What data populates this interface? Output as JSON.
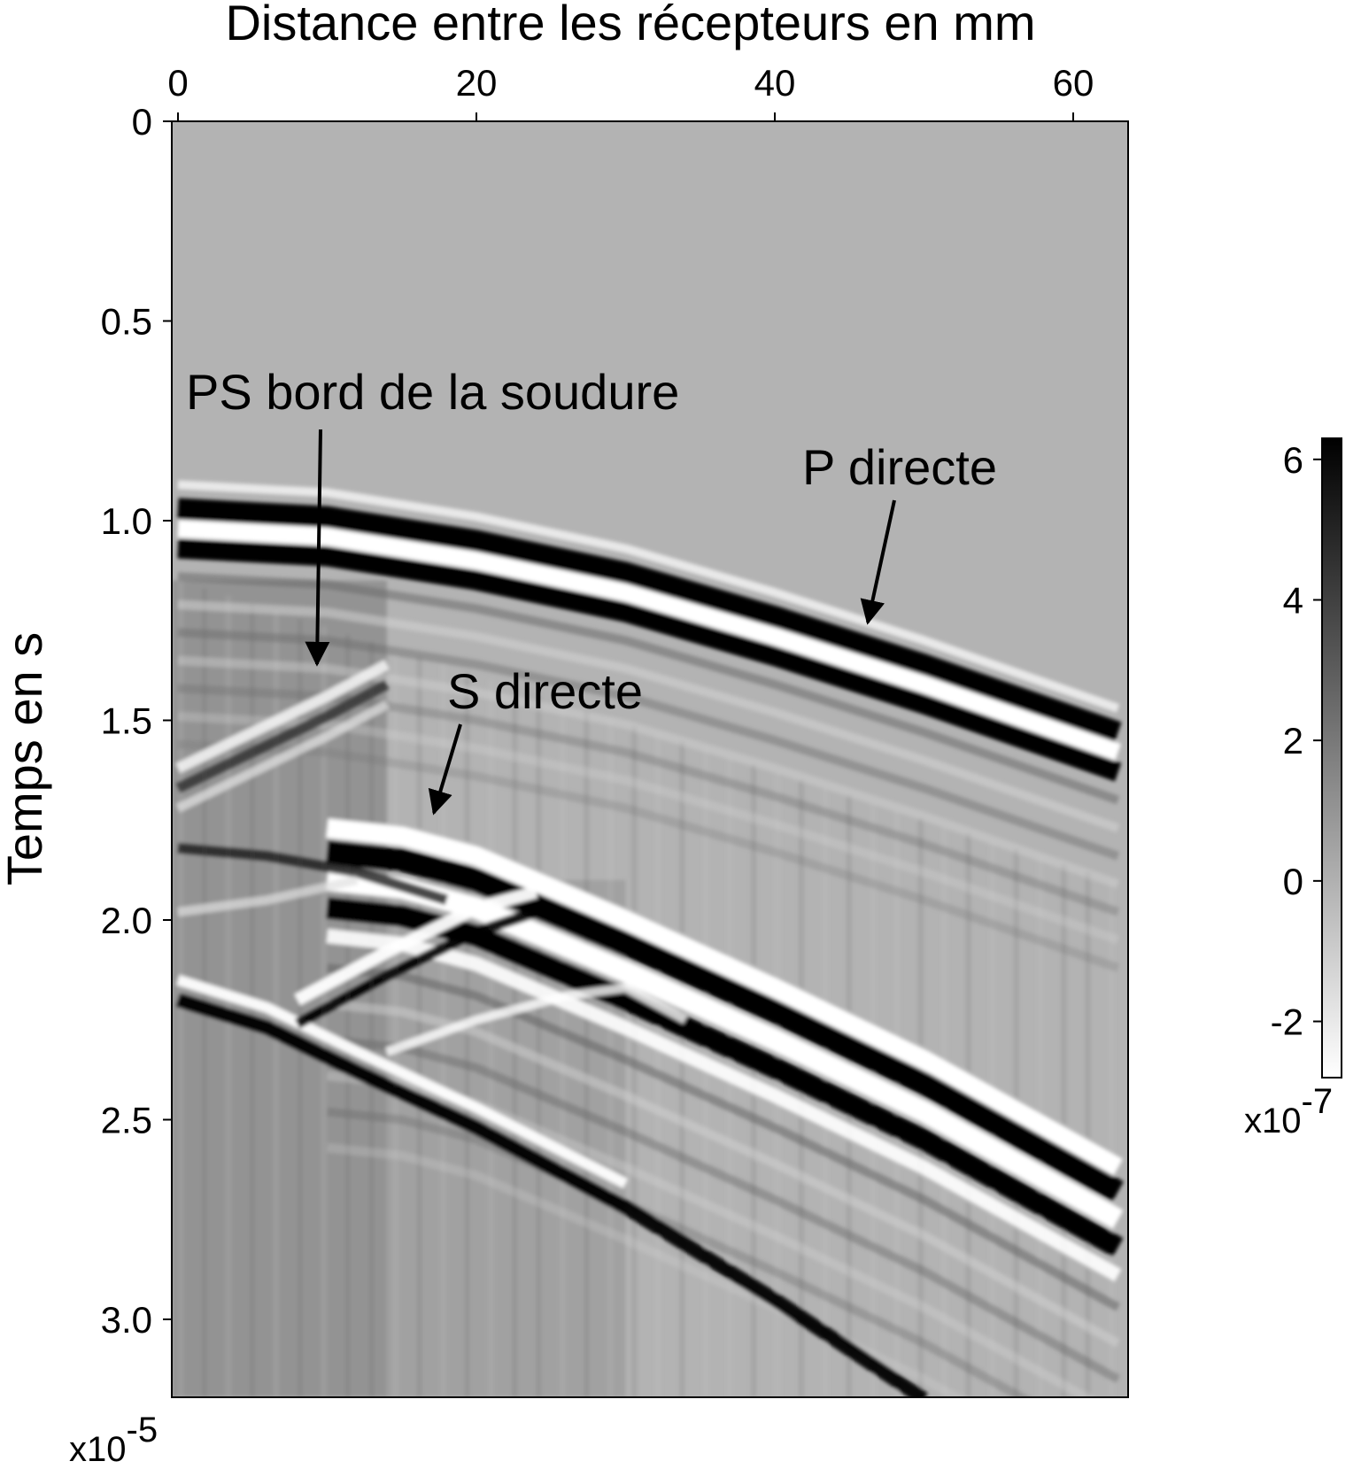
{
  "chart_data": {
    "type": "heatmap",
    "title": "",
    "xlabel": "Distance entre les récepteurs en mm",
    "ylabel": "Temps en s",
    "x_ticks": [
      0,
      20,
      40,
      60
    ],
    "y_ticks": [
      "0",
      "0.5",
      "1.0",
      "1.5",
      "2.0",
      "2.5",
      "3.0"
    ],
    "y_tick_values": [
      0,
      0.5,
      1.0,
      1.5,
      2.0,
      2.5,
      3.0
    ],
    "xlim": [
      0,
      63.5
    ],
    "ylim": [
      0,
      3.2
    ],
    "y_multiplier": "x10",
    "y_multiplier_exp": "-5",
    "colormap": "grayscale",
    "colorbar": {
      "ticks": [
        "6",
        "4",
        "2",
        "0",
        "-2"
      ],
      "tick_values": [
        6,
        4,
        2,
        0,
        -2
      ],
      "range": [
        -2.8,
        6.3
      ],
      "multiplier": "x10",
      "multiplier_exp": "-7"
    },
    "annotations": [
      {
        "text": "PS bord de la soudure",
        "x": 10,
        "y": 1.4
      },
      {
        "text": "P directe",
        "x": 46,
        "y": 1.27
      },
      {
        "text": "S directe",
        "x": 17,
        "y": 1.76
      }
    ],
    "wave_fronts": [
      {
        "name": "P directe",
        "x": [
          0,
          10,
          20,
          30,
          40,
          50,
          63
        ],
        "y": [
          0.97,
          0.99,
          1.05,
          1.13,
          1.24,
          1.36,
          1.53
        ]
      },
      {
        "name": "S directe",
        "x": [
          10,
          15,
          20,
          25,
          30,
          40,
          50,
          63
        ],
        "y": [
          1.8,
          1.82,
          1.87,
          1.95,
          2.03,
          2.2,
          2.38,
          2.65
        ]
      },
      {
        "name": "PS bord de la soudure",
        "x": [
          0,
          5,
          10,
          14
        ],
        "y": [
          1.62,
          1.53,
          1.44,
          1.36
        ]
      }
    ]
  }
}
